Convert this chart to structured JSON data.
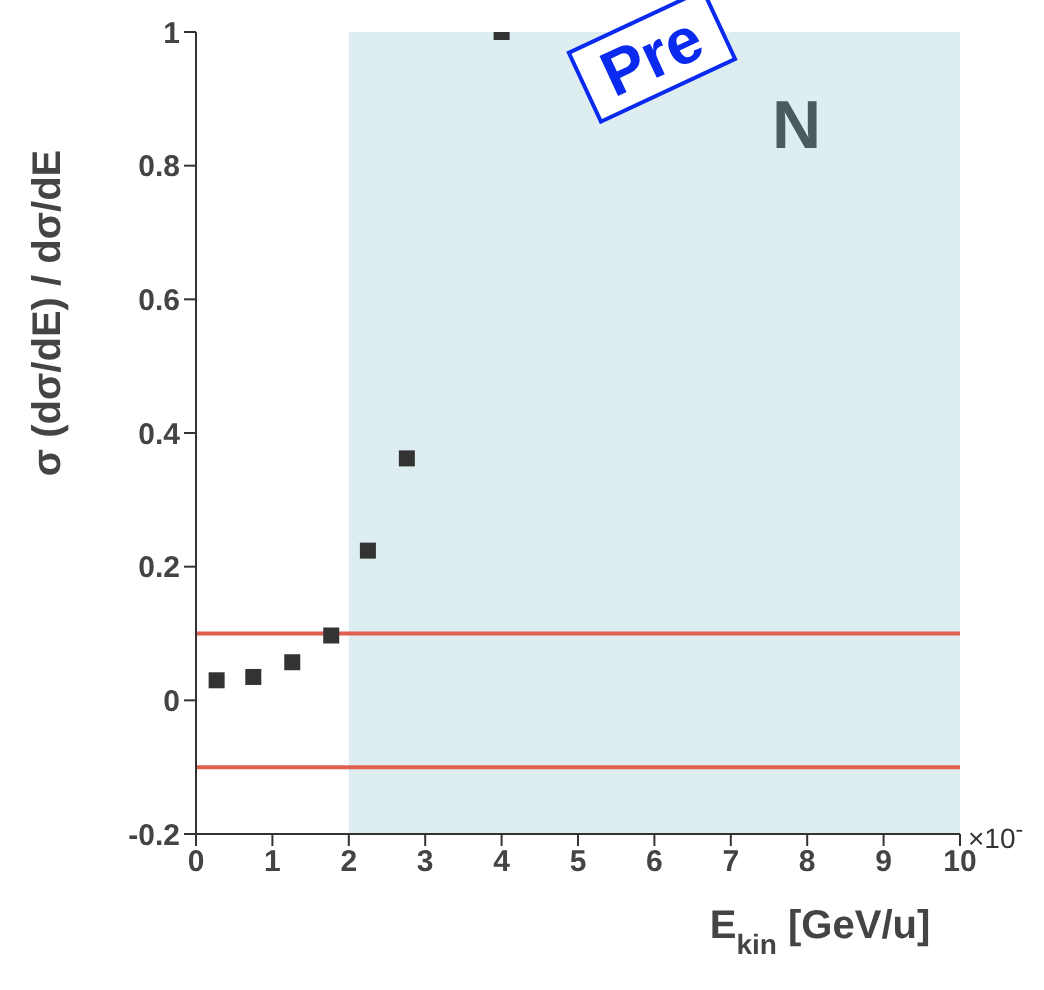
{
  "chart_data": {
    "type": "scatter",
    "xlabel": "E$_{kin}$ [GeV/u]",
    "ylabel": "σ (dσ/dE) / dσ/dE",
    "x": [
      0.27,
      0.75,
      1.26,
      1.77,
      2.25,
      2.76,
      4.0
    ],
    "series": [
      {
        "color": "#333333",
        "values": [
          0.03,
          0.035,
          0.057,
          0.097,
          0.224,
          0.362,
          1.0
        ]
      }
    ],
    "marker": "square",
    "xlim": [
      0,
      10
    ],
    "xticks": [
      0,
      1,
      2,
      3,
      4,
      5,
      6,
      7,
      8,
      9,
      10
    ],
    "ylim": [
      -0.2,
      1
    ],
    "yticks": [
      {
        "value": -0.2,
        "label": "-0.2"
      },
      0,
      0.2,
      0.4,
      0.6,
      0.8,
      1
    ],
    "ref_lines": [
      {
        "axis": "y",
        "value": 0.1,
        "color": "#e06050"
      },
      {
        "axis": "y",
        "value": -0.1,
        "color": "#e06050"
      }
    ],
    "bands": [
      {
        "axis": "x",
        "from": 2,
        "to": 10,
        "color": "#deedf0"
      }
    ],
    "annotations": [
      "N",
      "Pre",
      "×10$^{-}$"
    ],
    "grid": false,
    "legend": false
  }
}
